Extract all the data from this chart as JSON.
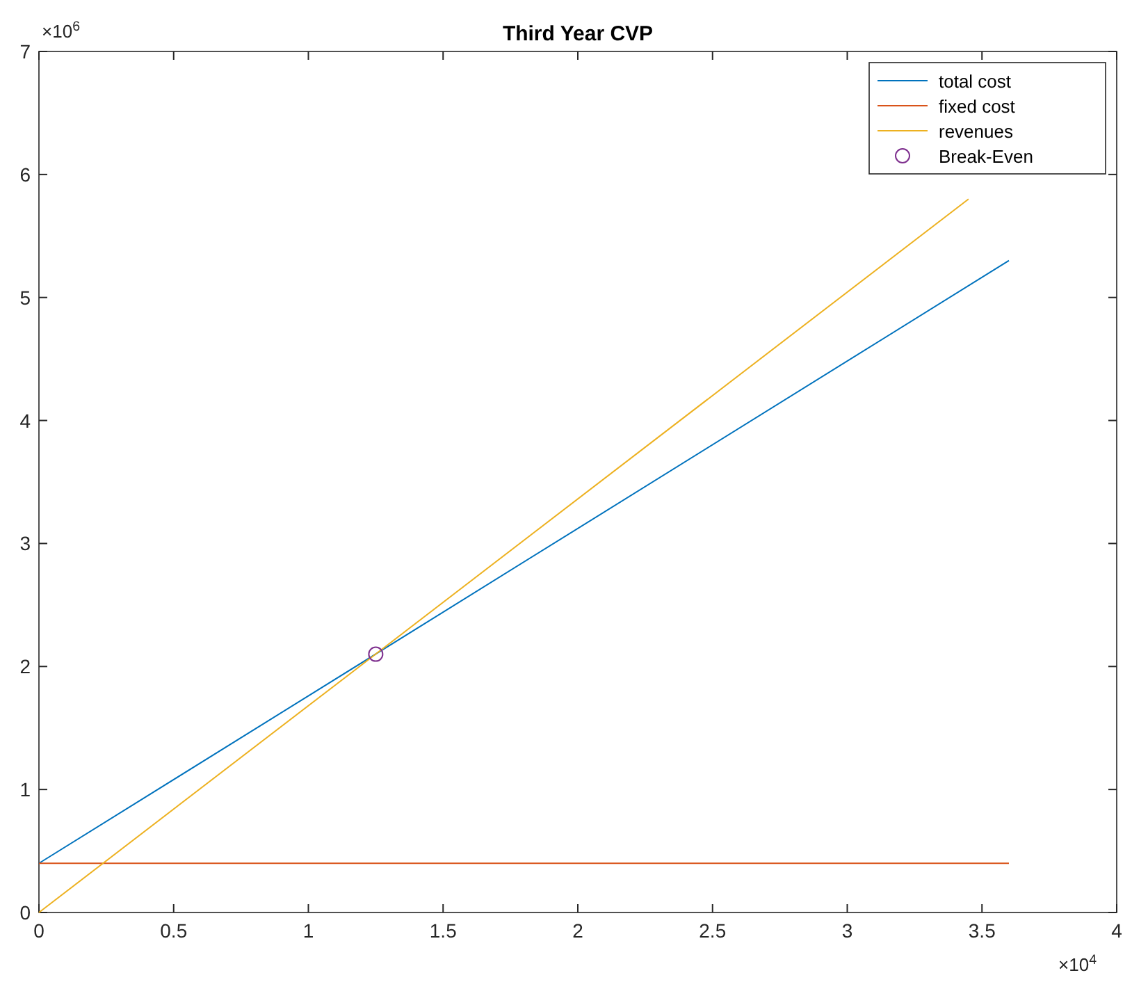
{
  "chart_data": {
    "type": "line",
    "title": "Third Year CVP",
    "xlim": [
      0,
      4
    ],
    "xticks": [
      0,
      0.5,
      1,
      1.5,
      2,
      2.5,
      3,
      3.5,
      4
    ],
    "ylim": [
      0,
      7
    ],
    "yticks": [
      0,
      1,
      2,
      3,
      4,
      5,
      6,
      7
    ],
    "annotations": [
      "×10$^{6}$",
      "×10$^{4}$"
    ],
    "legend": "top right",
    "grid": false,
    "series": [
      {
        "name": "total cost",
        "color": "#0072bd",
        "x": [
          0,
          3.6
        ],
        "values": [
          0.4,
          5.3
        ]
      },
      {
        "name": "fixed cost",
        "color": "#d95319",
        "x": [
          0,
          3.6
        ],
        "values": [
          0.4,
          0.4
        ]
      },
      {
        "name": "revenues",
        "color": "#edb120",
        "x": [
          0,
          3.45
        ],
        "values": [
          0,
          5.8
        ]
      },
      {
        "name": "Break-Even",
        "type": "scatter",
        "marker": "circle",
        "color": "#7e2f8e",
        "x": [
          1.25
        ],
        "values": [
          2.1
        ]
      }
    ]
  }
}
